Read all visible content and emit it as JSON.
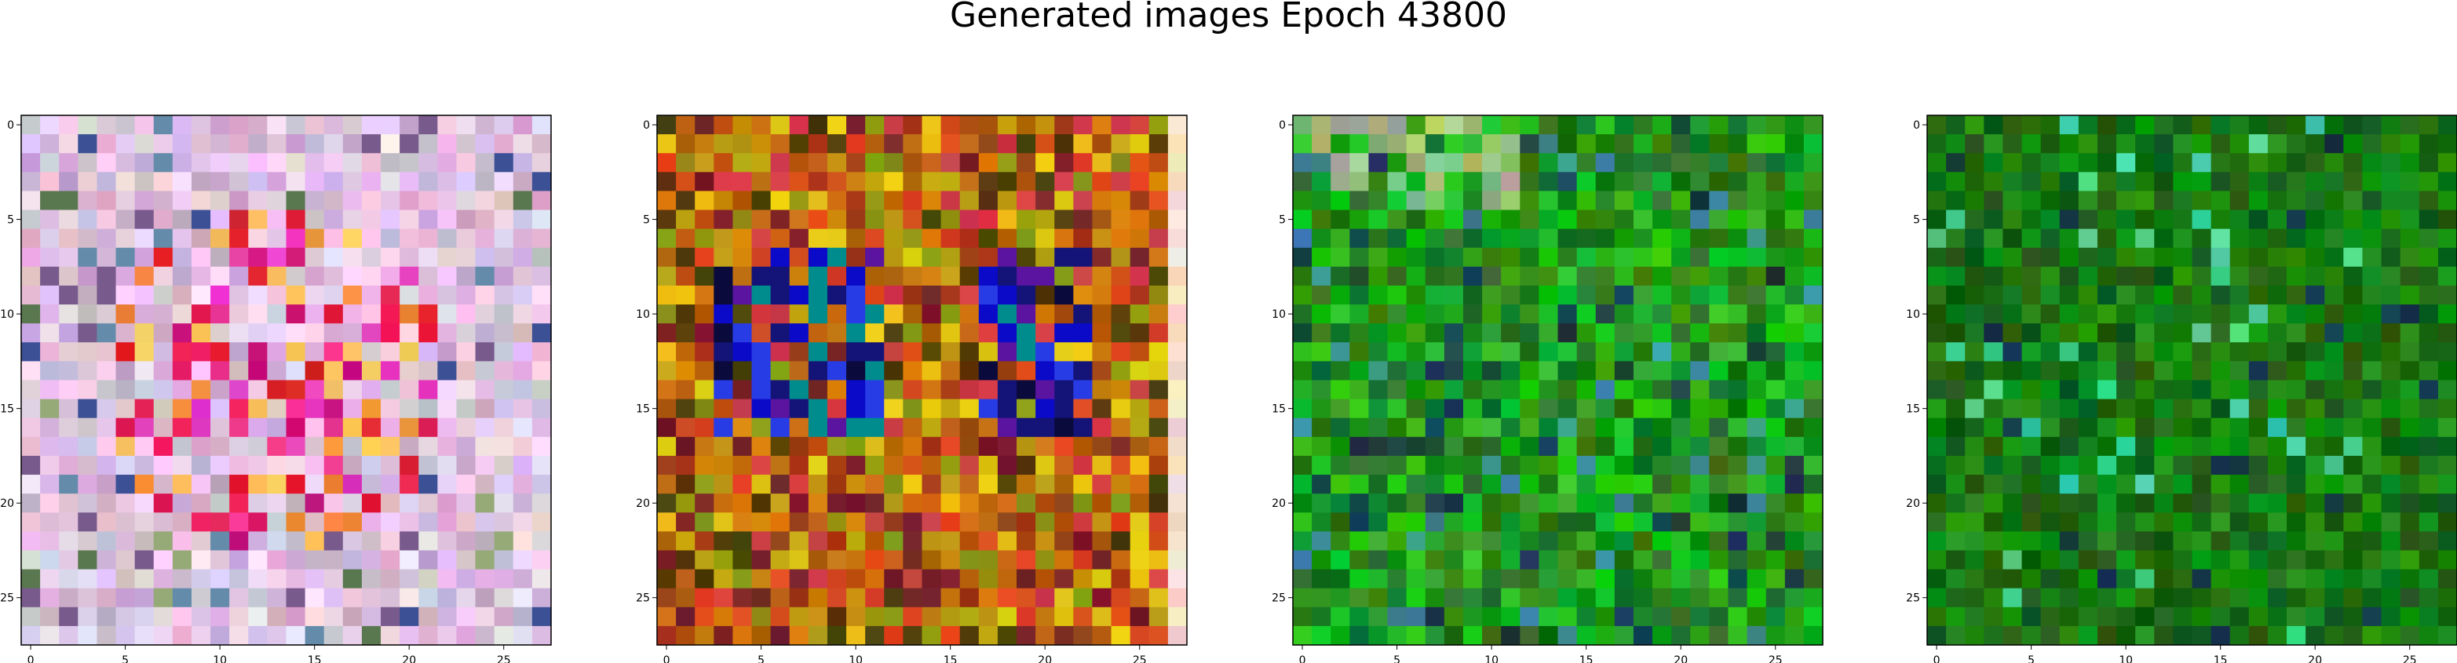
{
  "figure": {
    "title": "Generated images Epoch 43800"
  },
  "chart_data": [
    {
      "type": "heatmap",
      "palette": "pastel-pink",
      "grid": false,
      "size": 28,
      "xticks": [
        0,
        5,
        10,
        15,
        20,
        25
      ],
      "yticks": [
        0,
        5,
        10,
        15,
        20,
        25
      ],
      "xlim": [
        -0.5,
        27.5
      ],
      "ylim": [
        27.5,
        -0.5
      ],
      "xtick_labels": [
        "0",
        "5",
        "10",
        "15",
        "20",
        "25"
      ],
      "ytick_labels": [
        "0",
        "5",
        "10",
        "15",
        "20",
        "25"
      ]
    },
    {
      "type": "heatmap",
      "palette": "warm-blue",
      "grid": false,
      "size": 28,
      "xticks": [
        0,
        5,
        10,
        15,
        20,
        25
      ],
      "yticks": [
        0,
        5,
        10,
        15,
        20,
        25
      ],
      "xlim": [
        -0.5,
        27.5
      ],
      "ylim": [
        27.5,
        -0.5
      ],
      "xtick_labels": [
        "0",
        "5",
        "10",
        "15",
        "20",
        "25"
      ],
      "ytick_labels": [
        "0",
        "5",
        "10",
        "15",
        "20",
        "25"
      ]
    },
    {
      "type": "heatmap",
      "palette": "green-light",
      "grid": false,
      "size": 28,
      "xticks": [
        0,
        5,
        10,
        15,
        20,
        25
      ],
      "yticks": [
        0,
        5,
        10,
        15,
        20,
        25
      ],
      "xlim": [
        -0.5,
        27.5
      ],
      "ylim": [
        27.5,
        -0.5
      ],
      "xtick_labels": [
        "0",
        "5",
        "10",
        "15",
        "20",
        "25"
      ],
      "ytick_labels": [
        "0",
        "5",
        "10",
        "15",
        "20",
        "25"
      ]
    },
    {
      "type": "heatmap",
      "palette": "green-dark",
      "grid": false,
      "size": 28,
      "xticks": [
        0,
        5,
        10,
        15,
        20,
        25
      ],
      "yticks": [
        0,
        5,
        10,
        15,
        20,
        25
      ],
      "xlim": [
        -0.5,
        27.5
      ],
      "ylim": [
        27.5,
        -0.5
      ],
      "xtick_labels": [
        "0",
        "5",
        "10",
        "15",
        "20",
        "25"
      ],
      "ytick_labels": [
        "0",
        "5",
        "10",
        "15",
        "20",
        "25"
      ]
    }
  ]
}
